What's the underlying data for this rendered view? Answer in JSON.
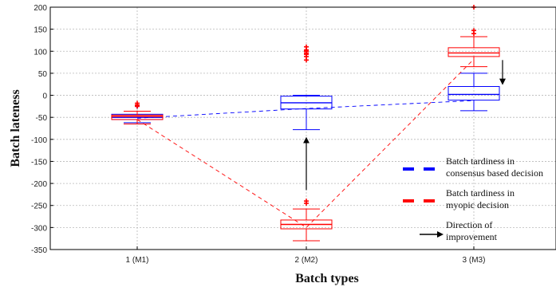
{
  "chart_data": {
    "type": "box",
    "title": "",
    "xlabel": "Batch types",
    "ylabel": "Batch lateness",
    "categories": [
      "1 (M1)",
      "2 (M2)",
      "3 (M3)"
    ],
    "ylim": [
      -350,
      200
    ],
    "yticks": [
      200,
      150,
      100,
      50,
      0,
      -50,
      -100,
      -150,
      -200,
      -250,
      -300,
      -350
    ],
    "grid": true,
    "legend_position": "right",
    "series": [
      {
        "name": "Batch tardiness in consensus based decision",
        "color": "#0000ff",
        "style": "dashed",
        "boxes": [
          {
            "min": -62,
            "q1": -55,
            "median": -50,
            "q3": -43,
            "max": -36,
            "outliers": [
              -25
            ]
          },
          {
            "min": -78,
            "q1": -31,
            "median": -17,
            "q3": -2,
            "max": 0,
            "outliers": []
          },
          {
            "min": -35,
            "q1": -11,
            "median": 2,
            "q3": 20,
            "max": 50,
            "outliers": []
          }
        ],
        "trend": [
          -52,
          -30,
          -12
        ]
      },
      {
        "name": "Batch tardiness in myopic decision",
        "color": "#ff0000",
        "style": "dashed",
        "boxes": [
          {
            "min": -65,
            "q1": -55,
            "median": -48,
            "q3": -45,
            "max": -36,
            "outliers": [
              -18,
              -22,
              -25
            ]
          },
          {
            "min": -330,
            "q1": -303,
            "median": -293,
            "q3": -283,
            "max": -258,
            "outliers": [
              -240,
              -245,
              80,
              88,
              93,
              96,
              100,
              103,
              110
            ]
          },
          {
            "min": 65,
            "q1": 88,
            "median": 96,
            "q3": 108,
            "max": 133,
            "outliers": [
              140,
              147,
              200
            ]
          }
        ],
        "trend": [
          -55,
          -300,
          82
        ]
      }
    ],
    "annotations": [
      {
        "label": "Direction of improvement",
        "arrows": [
          {
            "category": "2 (M2)",
            "from": -215,
            "to": -98
          },
          {
            "category": "3 (M3)",
            "from": 80,
            "to": 27
          }
        ]
      }
    ]
  },
  "legend": [
    {
      "name": "consensus",
      "line1": "Batch tardiness in",
      "line2": "consensus based decision",
      "color": "#0000ff"
    },
    {
      "name": "myopic",
      "line1": "Batch tardiness in",
      "line2": "myopic decision",
      "color": "#ff0000"
    },
    {
      "name": "direction",
      "line1": "Direction of",
      "line2": "improvement",
      "color": "#000000"
    }
  ]
}
